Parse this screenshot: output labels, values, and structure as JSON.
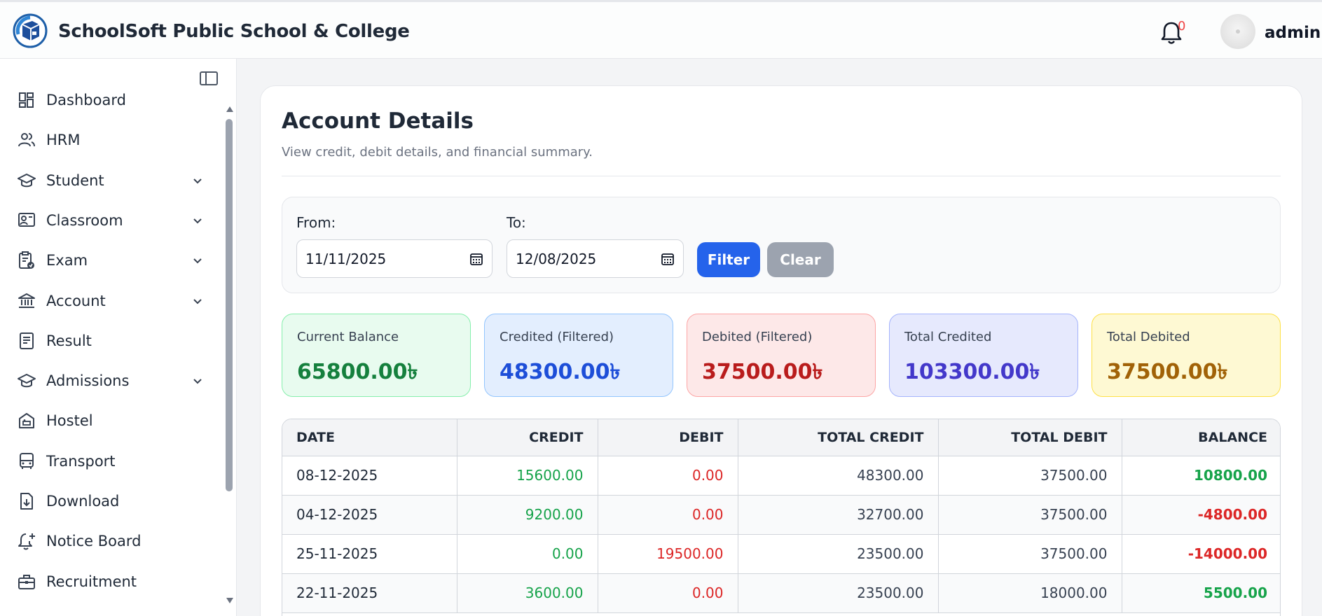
{
  "header": {
    "app_title": "SchoolSoft Public School & College",
    "notification_count": "0",
    "user_name": "admin"
  },
  "sidebar": {
    "items": [
      {
        "label": "Dashboard",
        "icon": "dashboard-icon",
        "has_chevron": false
      },
      {
        "label": "HRM",
        "icon": "users-icon",
        "has_chevron": false
      },
      {
        "label": "Student",
        "icon": "graduation-cap-icon",
        "has_chevron": true
      },
      {
        "label": "Classroom",
        "icon": "classroom-icon",
        "has_chevron": true
      },
      {
        "label": "Exam",
        "icon": "exam-clipboard-icon",
        "has_chevron": true
      },
      {
        "label": "Account",
        "icon": "bank-icon",
        "has_chevron": true
      },
      {
        "label": "Result",
        "icon": "document-icon",
        "has_chevron": false
      },
      {
        "label": "Admissions",
        "icon": "graduation-cap-icon",
        "has_chevron": true
      },
      {
        "label": "Hostel",
        "icon": "hostel-icon",
        "has_chevron": false
      },
      {
        "label": "Transport",
        "icon": "bus-icon",
        "has_chevron": false
      },
      {
        "label": "Download",
        "icon": "file-download-icon",
        "has_chevron": false
      },
      {
        "label": "Notice Board",
        "icon": "bell-plus-icon",
        "has_chevron": false
      },
      {
        "label": "Recruitment",
        "icon": "briefcase-icon",
        "has_chevron": false
      }
    ]
  },
  "main": {
    "title": "Account Details",
    "subtitle": "View credit, debit details, and financial summary.",
    "filter": {
      "from_label": "From:",
      "from_value": "11/11/2025",
      "to_label": "To:",
      "to_value": "12/08/2025",
      "filter_button": "Filter",
      "clear_button": "Clear"
    },
    "stats": [
      {
        "label": "Current Balance",
        "value": "65800.00৳",
        "bg": "#e8fbef",
        "border": "#86efac",
        "color": "#15803d"
      },
      {
        "label": "Credited (Filtered)",
        "value": "48300.00৳",
        "bg": "#e3eefe",
        "border": "#93c5fd",
        "color": "#1d4ed8"
      },
      {
        "label": "Debited (Filtered)",
        "value": "37500.00৳",
        "bg": "#fde8e8",
        "border": "#fca5a5",
        "color": "#b91c1c"
      },
      {
        "label": "Total Credited",
        "value": "103300.00৳",
        "bg": "#e6e9fd",
        "border": "#a5b4fc",
        "color": "#4338ca"
      },
      {
        "label": "Total Debited",
        "value": "37500.00৳",
        "bg": "#fef9d3",
        "border": "#fde047",
        "color": "#a16207"
      }
    ],
    "table": {
      "headers": [
        "DATE",
        "CREDIT",
        "DEBIT",
        "TOTAL CREDIT",
        "TOTAL DEBIT",
        "BALANCE"
      ],
      "rows": [
        {
          "date": "08-12-2025",
          "credit": "15600.00",
          "debit": "0.00",
          "total_credit": "48300.00",
          "total_debit": "37500.00",
          "balance": "10800.00",
          "balance_status": "positive"
        },
        {
          "date": "04-12-2025",
          "credit": "9200.00",
          "debit": "0.00",
          "total_credit": "32700.00",
          "total_debit": "37500.00",
          "balance": "-4800.00",
          "balance_status": "negative"
        },
        {
          "date": "25-11-2025",
          "credit": "0.00",
          "debit": "19500.00",
          "total_credit": "23500.00",
          "total_debit": "37500.00",
          "balance": "-14000.00",
          "balance_status": "negative"
        },
        {
          "date": "22-11-2025",
          "credit": "3600.00",
          "debit": "0.00",
          "total_credit": "23500.00",
          "total_debit": "18000.00",
          "balance": "5500.00",
          "balance_status": "positive"
        }
      ]
    }
  },
  "colors": {
    "primary": "#2563eb",
    "positive": "#16a34a",
    "negative": "#dc2626",
    "muted_button": "#9ca3af"
  }
}
